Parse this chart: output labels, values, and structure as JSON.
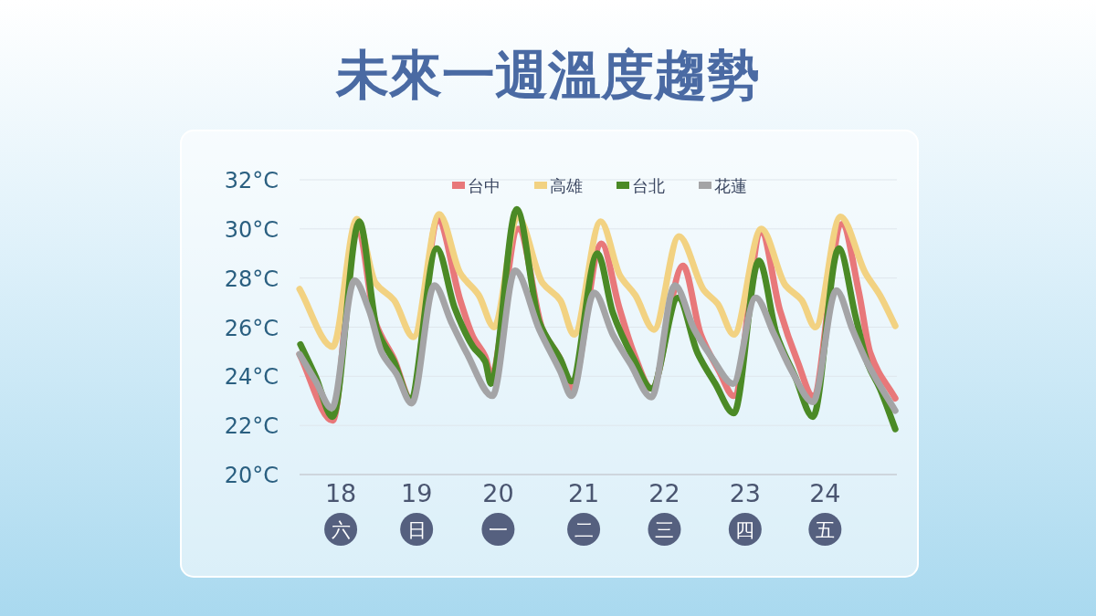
{
  "chart_data": {
    "type": "line",
    "title": "未來一週溫度趨勢",
    "xlim": [
      17.49,
      24.89
    ],
    "xticks": [
      {
        "value": 18,
        "label": "18\n六"
      },
      {
        "value": 18.94,
        "label": "19\n日"
      },
      {
        "value": 19.95,
        "label": "20\n一"
      },
      {
        "value": 21.01,
        "label": "21\n二"
      },
      {
        "value": 22.01,
        "label": "22\n三"
      },
      {
        "value": 23.01,
        "label": "23\n四"
      },
      {
        "value": 24,
        "label": "24\n五"
      }
    ],
    "ylim": [
      20,
      32
    ],
    "yticks": [
      {
        "value": 20,
        "label": "20°C"
      },
      {
        "value": 22,
        "label": "22°C"
      },
      {
        "value": 24,
        "label": "24°C"
      },
      {
        "value": 26,
        "label": "26°C"
      },
      {
        "value": 28,
        "label": "28°C"
      },
      {
        "value": 30,
        "label": "30°C"
      },
      {
        "value": 32,
        "label": "32°C"
      }
    ],
    "grid": "y",
    "legend": "top",
    "marker": "none",
    "line_style": "solid",
    "series": [
      {
        "name": "台中",
        "color": "#e8787a",
        "x": [
          17.49,
          17.9,
          18.2,
          18.43,
          18.66,
          18.88,
          19.2,
          19.48,
          19.64,
          19.79,
          19.86,
          20.2,
          20.5,
          20.72,
          20.86,
          21.23,
          21.45,
          21.63,
          21.85,
          22.24,
          22.46,
          22.69,
          22.87,
          23.21,
          23.44,
          23.66,
          23.85,
          24.21,
          24.42,
          24.56,
          24.87
        ],
        "values": [
          24.9,
          22.2,
          30.2,
          26.2,
          24.7,
          23.0,
          30.4,
          27.1,
          25.6,
          24.8,
          24.1,
          30.0,
          25.9,
          24.7,
          23.5,
          29.4,
          26.8,
          24.95,
          23.5,
          28.5,
          25.7,
          24.2,
          23.2,
          29.85,
          26.7,
          24.6,
          23.2,
          30.2,
          27.4,
          24.95,
          23.1
        ]
      },
      {
        "name": "高雄",
        "color": "#f2d282",
        "x": [
          17.49,
          17.9,
          18.2,
          18.43,
          18.66,
          18.9,
          19.22,
          19.48,
          19.71,
          19.9,
          20.19,
          20.5,
          20.72,
          20.89,
          21.22,
          21.46,
          21.65,
          21.88,
          22.19,
          22.5,
          22.67,
          22.87,
          23.21,
          23.51,
          23.71,
          23.88,
          24.19,
          24.5,
          24.68,
          24.87
        ],
        "values": [
          27.55,
          25.2,
          30.4,
          27.8,
          27.1,
          25.6,
          30.6,
          28.2,
          27.3,
          26.0,
          30.5,
          27.8,
          27.1,
          25.7,
          30.3,
          28.1,
          27.3,
          25.9,
          29.7,
          27.5,
          26.95,
          25.7,
          30.0,
          27.7,
          27.1,
          26.0,
          30.5,
          28.2,
          27.3,
          26.05
        ]
      },
      {
        "name": "台北",
        "color": "#4b8a26",
        "x": [
          17.5,
          17.69,
          17.9,
          18.23,
          18.45,
          18.66,
          18.86,
          19.19,
          19.41,
          19.64,
          19.79,
          19.86,
          20.18,
          20.46,
          20.72,
          20.86,
          21.18,
          21.37,
          21.63,
          21.85,
          22.18,
          22.42,
          22.64,
          22.87,
          23.18,
          23.4,
          23.63,
          23.85,
          24.17,
          24.38,
          24.53,
          24.68,
          24.87
        ],
        "values": [
          25.3,
          23.98,
          22.35,
          30.3,
          25.9,
          24.6,
          23.1,
          29.2,
          26.8,
          25.2,
          24.6,
          23.7,
          30.8,
          26.2,
          24.7,
          23.8,
          29.0,
          26.6,
          24.7,
          23.5,
          27.2,
          24.95,
          23.7,
          22.5,
          28.7,
          25.7,
          23.98,
          22.35,
          29.2,
          26.4,
          24.5,
          23.5,
          21.85
        ]
      },
      {
        "name": "花蓮",
        "color": "#a4a4a6",
        "x": [
          17.49,
          17.69,
          17.89,
          18.17,
          18.35,
          18.51,
          18.69,
          18.88,
          19.16,
          19.37,
          19.56,
          19.88,
          20.16,
          20.46,
          20.72,
          20.86,
          21.14,
          21.37,
          21.59,
          21.85,
          22.14,
          22.38,
          22.61,
          22.86,
          23.14,
          23.37,
          23.59,
          23.85,
          24.14,
          24.34,
          24.53,
          24.87
        ],
        "values": [
          24.9,
          23.8,
          22.7,
          27.9,
          26.7,
          24.95,
          24.1,
          22.9,
          27.7,
          26.2,
          24.95,
          23.2,
          28.3,
          25.9,
          24.2,
          23.2,
          27.4,
          25.7,
          24.5,
          23.15,
          27.7,
          25.9,
          24.7,
          23.7,
          27.2,
          25.7,
          24.2,
          22.95,
          27.5,
          25.9,
          24.5,
          22.6
        ]
      }
    ]
  }
}
